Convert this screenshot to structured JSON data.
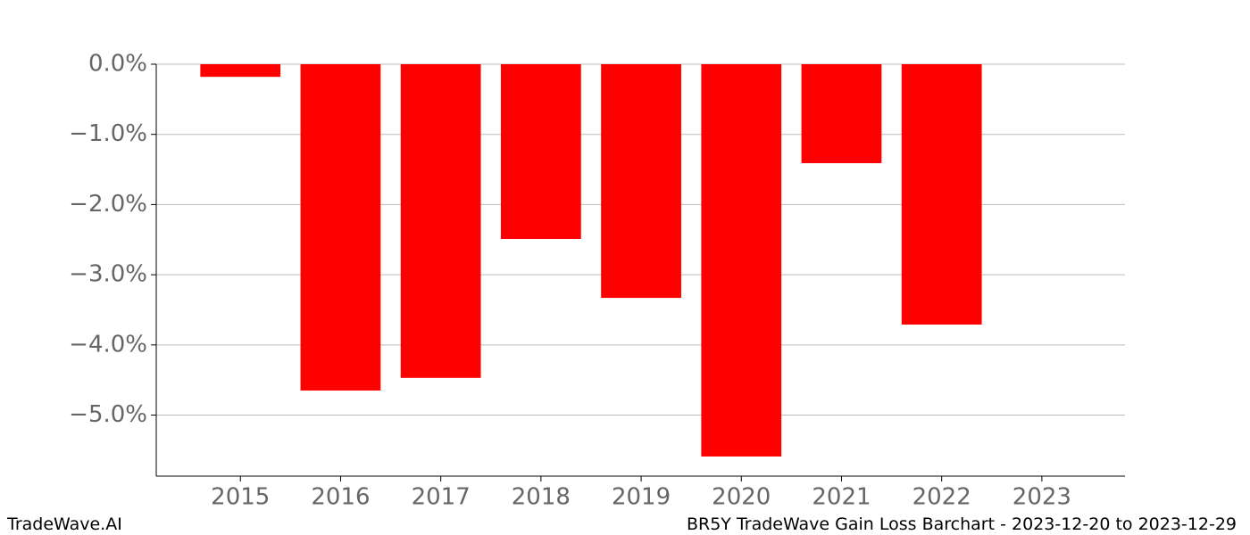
{
  "chart_data": {
    "type": "bar",
    "title": "BR5Y TradeWave Gain Loss Barchart - 2023-12-20 to 2023-12-29",
    "watermark": "TradeWave.AI",
    "x": [
      2015,
      2016,
      2017,
      2018,
      2019,
      2020,
      2021,
      2022,
      2023
    ],
    "values": [
      -0.18,
      -4.65,
      -4.47,
      -2.49,
      -3.33,
      -5.59,
      -1.41,
      -3.71,
      null
    ],
    "color": "#ff0000",
    "xlim": [
      2014.16,
      2023.83
    ],
    "xticks": [
      2015,
      2016,
      2017,
      2018,
      2019,
      2020,
      2021,
      2022,
      2023
    ],
    "ylim": [
      -5.87,
      0
    ],
    "yticks": [
      {
        "value": 0,
        "label": "0.0%"
      },
      {
        "value": -1,
        "label": "−1.0%"
      },
      {
        "value": -2,
        "label": "−2.0%"
      },
      {
        "value": -3,
        "label": "−3.0%"
      },
      {
        "value": -4,
        "label": "−4.0%"
      },
      {
        "value": -5,
        "label": "−5.0%"
      }
    ],
    "grid": true
  }
}
